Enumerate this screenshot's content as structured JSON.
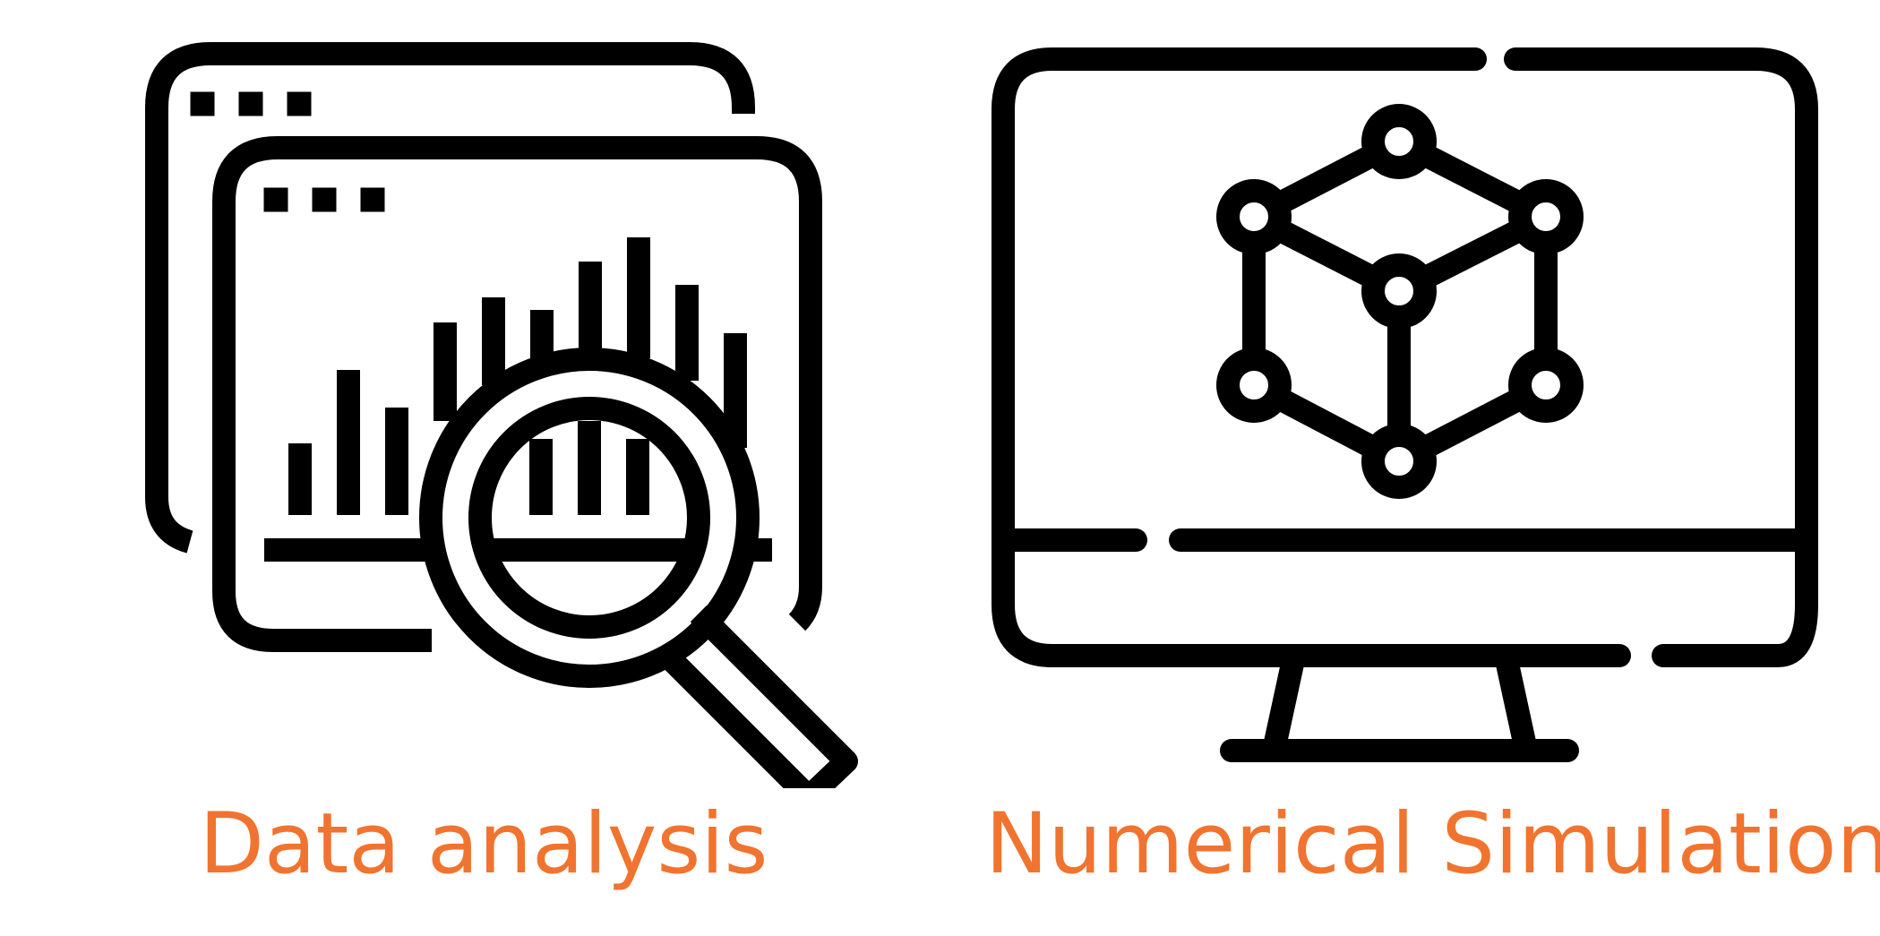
{
  "accent_color": "#f0742f",
  "ink_color": "#000000",
  "items": [
    {
      "icon": "data-analysis-icon",
      "caption": "Data analysis"
    },
    {
      "icon": "numerical-simulation-monitor-icon",
      "caption": "Numerical Simulation"
    }
  ]
}
